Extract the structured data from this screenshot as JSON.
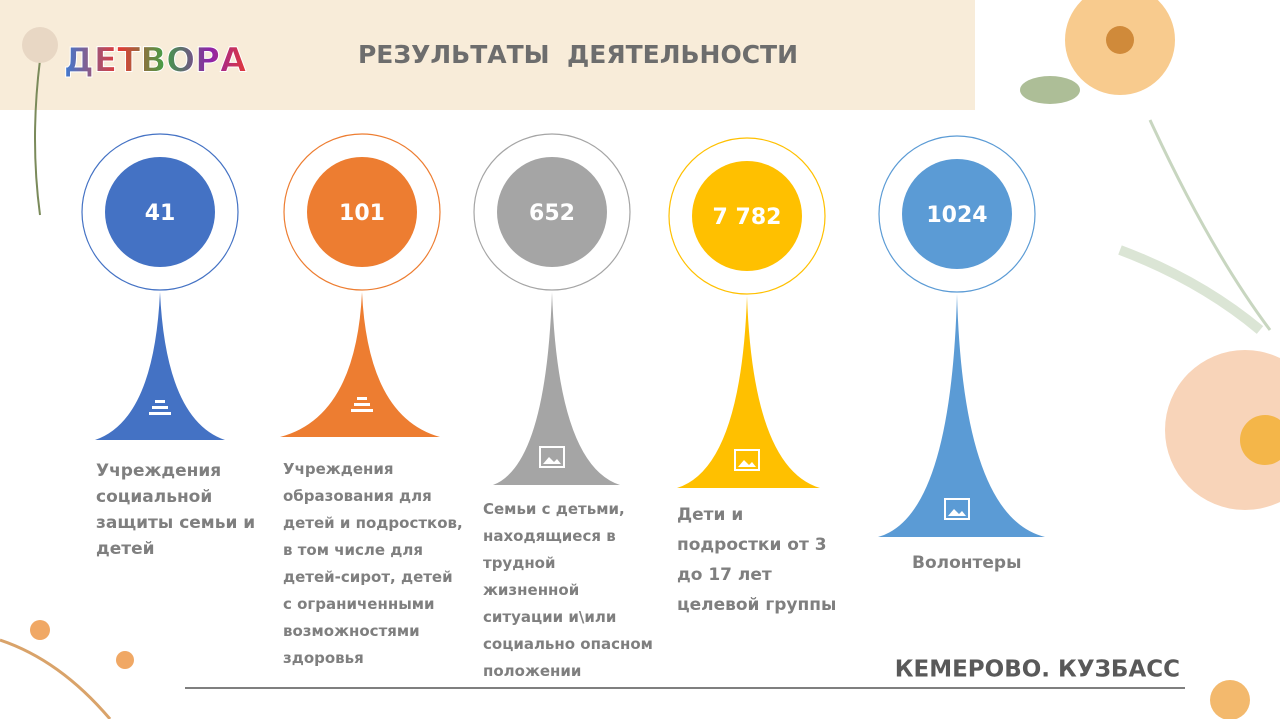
{
  "header": {
    "logo": "ДЕТВОРА",
    "title": "РЕЗУЛЬТАТЫ  ДЕЯТЕЛЬНОСТИ"
  },
  "items": [
    {
      "value": "41",
      "label": "Учреждения социальной защиты семьи и детей"
    },
    {
      "value": "101",
      "label": "Учреждения образования для детей и подростков, в том числе для детей-сирот, детей с ограниченными возможностями здоровья"
    },
    {
      "value": "652",
      "label": "Семьи с детьми, находящиеся в трудной жизненной ситуации и\\или социально опасном положении"
    },
    {
      "value": "7 782",
      "label": "Дети и подростки от 3 до 17 лет целевой группы"
    },
    {
      "value": "1024",
      "label": "Волонтеры"
    }
  ],
  "footer": {
    "text": "КЕМЕРОВО. КУЗБАСС"
  }
}
